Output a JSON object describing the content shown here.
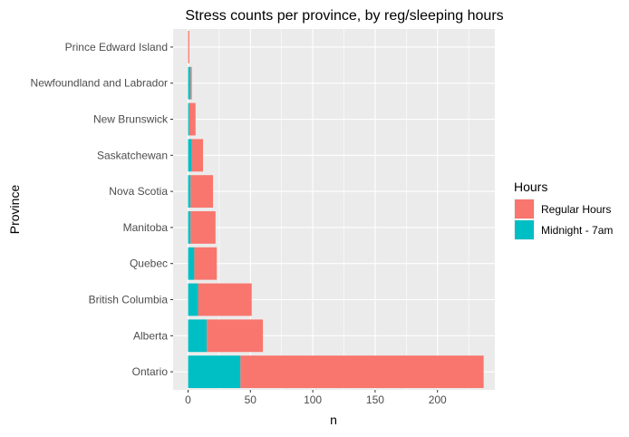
{
  "chart_data": {
    "type": "bar",
    "orientation": "horizontal",
    "stacked": true,
    "title": "Stress counts per province, by reg/sleeping hours",
    "xlabel": "n",
    "ylabel": "Province",
    "xlim": [
      -12,
      246
    ],
    "xticks": [
      0,
      50,
      100,
      150,
      200
    ],
    "grid": true,
    "legend_position": "right",
    "legend_title": "Hours",
    "categories": [
      "Ontario",
      "Alberta",
      "British Columbia",
      "Quebec",
      "Manitoba",
      "Nova Scotia",
      "Saskatchewan",
      "New Brunswick",
      "Newfoundland and Labrador",
      "Prince Edward Island"
    ],
    "series": [
      {
        "name": "Midnight - 7am",
        "color": "#00BFC4",
        "values": [
          42,
          15,
          8,
          5,
          2,
          2,
          3,
          1,
          2,
          0
        ]
      },
      {
        "name": "Regular Hours",
        "color": "#F8766D",
        "values": [
          195,
          45,
          43,
          18,
          20,
          18,
          9,
          5,
          1,
          1
        ]
      }
    ],
    "legend": [
      {
        "label": "Regular Hours",
        "color": "#F8766D"
      },
      {
        "label": "Midnight - 7am",
        "color": "#00BFC4"
      }
    ]
  }
}
